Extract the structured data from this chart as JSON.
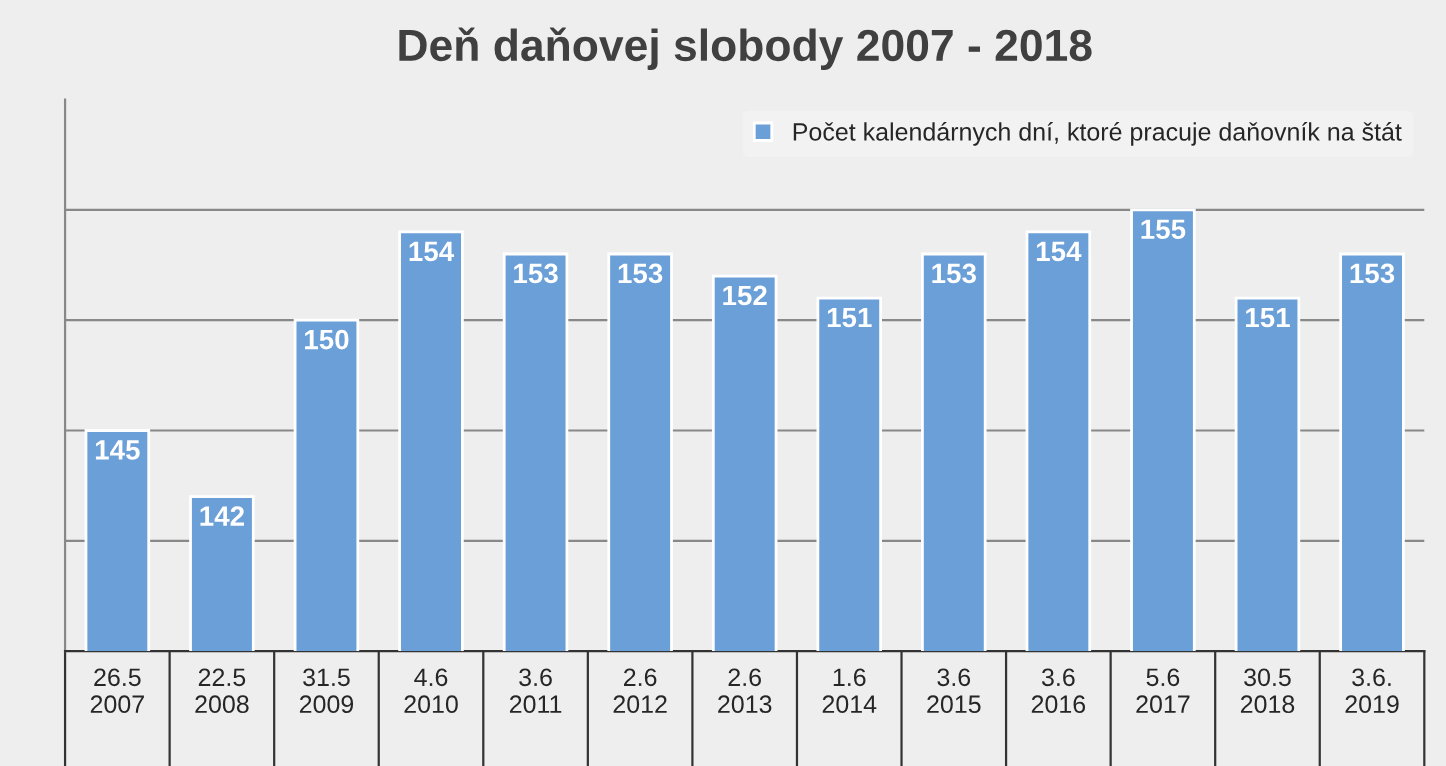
{
  "chart_data": {
    "type": "bar",
    "title": "Deň daňovej slobody 2007 - 2018",
    "categories": [
      "26.5\n2007",
      "22.5\n2008",
      "31.5\n2009",
      "4.6\n2010",
      "3.6\n2011",
      "2.6\n2012",
      "2.6\n2013",
      "1.6\n2014",
      "3.6\n2015",
      "3.6\n2016",
      "5.6\n2017",
      "30.5\n2018",
      "3.6.\n2019"
    ],
    "series": [
      {
        "name": "Počet kalendárnych dní, ktoré pracuje daňovník na štát",
        "color": "#6a9fd8",
        "values": [
          145,
          142,
          150,
          154,
          153,
          153,
          152,
          151,
          153,
          154,
          155,
          151,
          153
        ]
      }
    ],
    "ylim": [
      135,
      160
    ],
    "yticks": [
      {
        "value": 140,
        "label": null
      },
      {
        "value": 145,
        "label": null
      },
      {
        "value": 150,
        "label": null
      },
      {
        "value": 155,
        "label": null
      }
    ],
    "tick_labels": "x",
    "grid": "y",
    "legend": "top right",
    "data_labels": true
  }
}
